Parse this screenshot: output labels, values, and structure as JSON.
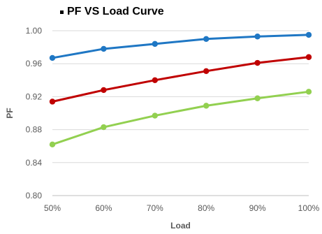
{
  "title": "PF VS Load Curve",
  "chart_data": {
    "type": "line",
    "categories": [
      "50%",
      "60%",
      "70%",
      "80%",
      "90%",
      "100%"
    ],
    "xlabel": "Load",
    "ylabel": "PF",
    "ylim": [
      0.8,
      1.0
    ],
    "y_ticks": [
      "0.80",
      "0.84",
      "0.88",
      "0.92",
      "0.96",
      "1.00"
    ],
    "grid": "horizontal",
    "legend": "none",
    "series": [
      {
        "color": "#1f77c4",
        "values": [
          0.967,
          0.978,
          0.984,
          0.99,
          0.993,
          0.995
        ]
      },
      {
        "color": "#c00000",
        "values": [
          0.914,
          0.928,
          0.94,
          0.951,
          0.961,
          0.968
        ]
      },
      {
        "color": "#92d050",
        "values": [
          0.862,
          0.883,
          0.897,
          0.909,
          0.918,
          0.926
        ]
      }
    ]
  }
}
